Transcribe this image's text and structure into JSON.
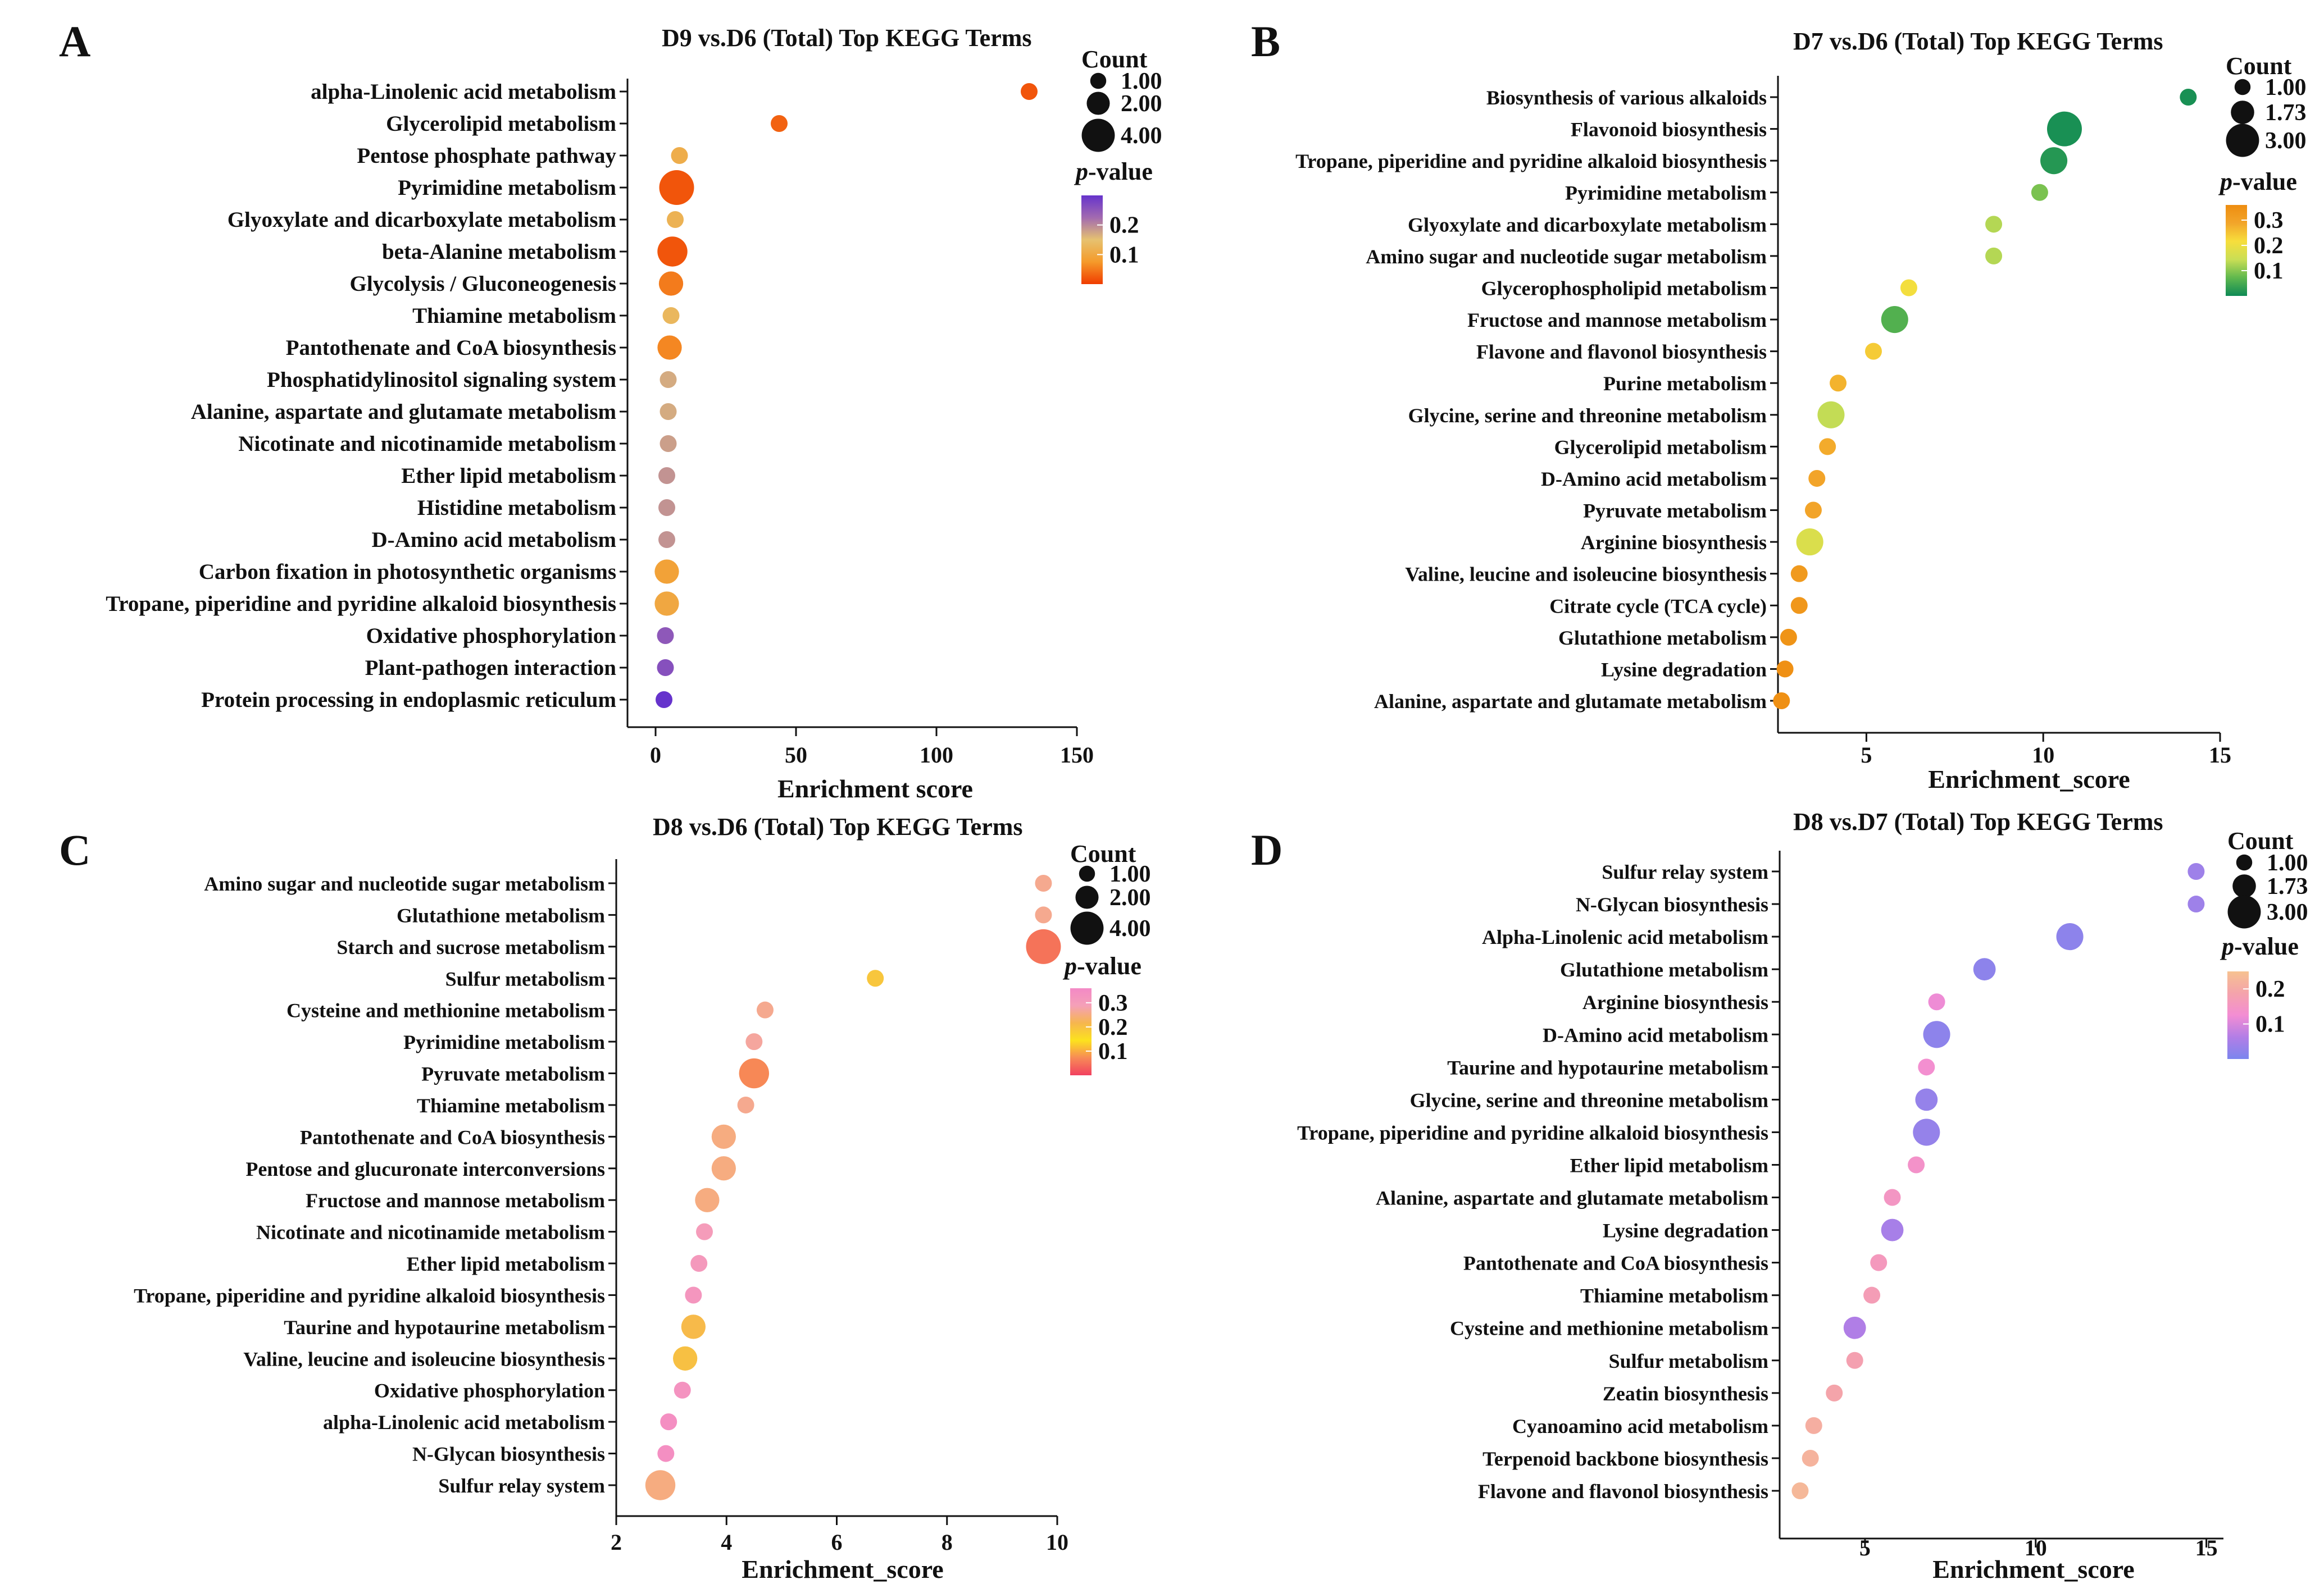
{
  "chart_data": [
    {
      "panel": "A",
      "type": "scatter",
      "title": "D9 vs.D6 (Total) Top KEGG Terms",
      "xlabel": "Enrichment  score",
      "ylabel": "",
      "xlim": [
        -10,
        150
      ],
      "xticks": [
        0,
        50,
        100,
        150
      ],
      "grid": false,
      "categories": [
        "alpha-Linolenic acid metabolism",
        "Glycerolipid metabolism",
        "Pentose phosphate pathway",
        "Pyrimidine metabolism",
        "Glyoxylate and dicarboxylate metabolism",
        "beta-Alanine metabolism",
        "Glycolysis / Gluconeogenesis",
        "Thiamine metabolism",
        "Pantothenate and CoA biosynthesis",
        "Phosphatidylinositol signaling system",
        "Alanine, aspartate and glutamate metabolism",
        "Nicotinate and nicotinamide metabolism",
        "Ether lipid metabolism",
        "Histidine metabolism",
        "D-Amino acid metabolism",
        "Carbon fixation in photosynthetic organisms",
        "Tropane, piperidine and pyridine alkaloid biosynthesis",
        "Oxidative phosphorylation",
        "Plant-pathogen interaction",
        "Protein processing in endoplasmic reticulum"
      ],
      "values": [
        133,
        44,
        8.5,
        7.5,
        7,
        6,
        5.5,
        5.5,
        5,
        4.5,
        4.5,
        4.5,
        4,
        4,
        4,
        4,
        4,
        3.5,
        3.5,
        3
      ],
      "counts": [
        1,
        1,
        1,
        4,
        1,
        3,
        2,
        1,
        2,
        1,
        1,
        1,
        1,
        1,
        1,
        2,
        2,
        1,
        1,
        1
      ],
      "pvalues": [
        0.02,
        0.03,
        0.11,
        0.02,
        0.12,
        0.02,
        0.05,
        0.13,
        0.06,
        0.17,
        0.17,
        0.18,
        0.19,
        0.19,
        0.19,
        0.09,
        0.1,
        0.25,
        0.26,
        0.3
      ],
      "legend": {
        "position": "top-right",
        "count_title": "Count",
        "count_entries": [
          {
            "label": "1.00",
            "value": 1
          },
          {
            "label": "2.00",
            "value": 2
          },
          {
            "label": "4.00",
            "value": 4
          }
        ],
        "count_max": 4,
        "p_title_italic": "p",
        "p_title_rest": "-value",
        "p_range": [
          0,
          0.3
        ],
        "p_ticks": [
          {
            "label": "0.2",
            "value": 0.2
          },
          {
            "label": "0.1",
            "value": 0.1
          }
        ],
        "colors": [
          "#f03c00",
          "#f59a2a",
          "#e6c270",
          "#a26ab0",
          "#6633cc"
        ]
      }
    },
    {
      "panel": "B",
      "type": "scatter",
      "title": "D7 vs.D6 (Total) Top KEGG Terms",
      "xlabel": "Enrichment_score",
      "ylabel": "",
      "xlim": [
        2.5,
        15
      ],
      "xticks": [
        5,
        10,
        15
      ],
      "grid": false,
      "categories": [
        "Biosynthesis of various alkaloids",
        "Flavonoid biosynthesis",
        "Tropane, piperidine and pyridine alkaloid biosynthesis",
        "Pyrimidine metabolism",
        "Glyoxylate and dicarboxylate metabolism",
        "Amino sugar and nucleotide sugar metabolism",
        "Glycerophospholipid metabolism",
        "Fructose and mannose metabolism",
        "Flavone and flavonol biosynthesis",
        "Purine metabolism",
        "Glycine, serine and threonine metabolism",
        "Glycerolipid metabolism",
        "D-Amino acid metabolism",
        "Pyruvate metabolism",
        "Arginine biosynthesis",
        "Valine, leucine and isoleucine biosynthesis",
        "Citrate cycle (TCA cycle)",
        "Glutathione metabolism",
        "Lysine degradation",
        "Alanine, aspartate and glutamate metabolism"
      ],
      "values": [
        14.1,
        10.6,
        10.3,
        9.9,
        8.6,
        8.6,
        6.2,
        5.8,
        5.2,
        4.2,
        4.0,
        3.9,
        3.6,
        3.5,
        3.4,
        3.1,
        3.1,
        2.8,
        2.7,
        2.6
      ],
      "counts": [
        1,
        3,
        2,
        1,
        1,
        1,
        1,
        2,
        1,
        1,
        2,
        1,
        1,
        1,
        2,
        1,
        1,
        1,
        1,
        1
      ],
      "pvalues": [
        0.01,
        0.01,
        0.02,
        0.09,
        0.13,
        0.13,
        0.21,
        0.06,
        0.24,
        0.27,
        0.14,
        0.28,
        0.29,
        0.29,
        0.17,
        0.32,
        0.33,
        0.34,
        0.35,
        0.35
      ],
      "legend": {
        "position": "top-right",
        "count_title": "Count",
        "count_entries": [
          {
            "label": "1.00",
            "value": 1
          },
          {
            "label": "1.73",
            "value": 1.73
          },
          {
            "label": "3.00",
            "value": 3
          }
        ],
        "count_max": 3,
        "p_title_italic": "p",
        "p_title_rest": "-value",
        "p_range": [
          0,
          0.36
        ],
        "p_ticks": [
          {
            "label": "0.3",
            "value": 0.3
          },
          {
            "label": "0.2",
            "value": 0.2
          },
          {
            "label": "0.1",
            "value": 0.1
          }
        ],
        "colors": [
          "#0e8a55",
          "#5fb84e",
          "#c9de55",
          "#f7de3c",
          "#f2a52a",
          "#ee8d10"
        ]
      }
    },
    {
      "panel": "C",
      "type": "scatter",
      "title": "D8 vs.D6 (Total) Top KEGG Terms",
      "xlabel": "Enrichment_score",
      "ylabel": "",
      "xlim": [
        2,
        10
      ],
      "xticks": [
        2,
        4,
        6,
        8,
        10
      ],
      "grid": false,
      "categories": [
        "Amino sugar and nucleotide sugar metabolism",
        "Glutathione metabolism",
        "Starch and sucrose metabolism",
        "Sulfur metabolism",
        "Cysteine and methionine metabolism",
        "Pyrimidine metabolism",
        "Pyruvate metabolism",
        "Thiamine metabolism",
        "Pantothenate and CoA biosynthesis",
        "Pentose and glucuronate interconversions",
        "Fructose and mannose metabolism",
        "Nicotinate and nicotinamide metabolism",
        "Ether lipid metabolism",
        "Tropane, piperidine and pyridine alkaloid biosynthesis",
        "Taurine and hypotaurine metabolism",
        "Valine, leucine and isoleucine biosynthesis",
        "Oxidative phosphorylation",
        "alpha-Linolenic acid metabolism",
        "N-Glycan biosynthesis",
        "Sulfur relay system"
      ],
      "values": [
        9.75,
        9.75,
        9.75,
        6.7,
        4.7,
        4.5,
        4.5,
        4.35,
        3.95,
        3.95,
        3.65,
        3.6,
        3.5,
        3.4,
        3.4,
        3.25,
        3.2,
        2.95,
        2.9,
        2.8
      ],
      "counts": [
        1,
        1,
        4,
        1,
        1,
        1,
        3,
        1,
        2,
        2,
        2,
        1,
        1,
        1,
        2,
        2,
        1,
        1,
        1,
        3
      ],
      "pvalues": [
        0.26,
        0.26,
        0.05,
        0.19,
        0.26,
        0.27,
        0.07,
        0.26,
        0.25,
        0.25,
        0.25,
        0.3,
        0.31,
        0.32,
        0.21,
        0.2,
        0.33,
        0.34,
        0.34,
        0.25
      ],
      "legend": {
        "position": "top-right",
        "count_title": "Count",
        "count_entries": [
          {
            "label": "1.00",
            "value": 1
          },
          {
            "label": "2.00",
            "value": 2
          },
          {
            "label": "4.00",
            "value": 4
          }
        ],
        "count_max": 4,
        "p_title_italic": "p",
        "p_title_rest": "-value",
        "p_range": [
          0,
          0.36
        ],
        "p_ticks": [
          {
            "label": "0.3",
            "value": 0.3
          },
          {
            "label": "0.2",
            "value": 0.2
          },
          {
            "label": "0.1",
            "value": 0.1
          }
        ],
        "colors": [
          "#f24060",
          "#f78a56",
          "#fce21e",
          "#f6b64e",
          "#f5a0b8",
          "#f389c6"
        ]
      }
    },
    {
      "panel": "D",
      "type": "scatter",
      "title": "D8 vs.D7 (Total) Top KEGG Terms",
      "xlabel": "Enrichment_score",
      "ylabel": "",
      "xlim": [
        2.5,
        15.5
      ],
      "xticks": [
        5,
        10,
        15
      ],
      "grid": false,
      "categories": [
        "Sulfur relay system",
        "N-Glycan biosynthesis",
        "Alpha-Linolenic acid metabolism",
        "Glutathione metabolism",
        "Arginine biosynthesis",
        "D-Amino acid metabolism",
        "Taurine and hypotaurine metabolism",
        "Glycine, serine and threonine metabolism",
        "Tropane, piperidine and pyridine alkaloid biosynthesis",
        "Ether lipid metabolism",
        "Alanine, aspartate and glutamate metabolism",
        "Lysine degradation",
        "Pantothenate and CoA biosynthesis",
        "Thiamine metabolism",
        "Cysteine and methionine metabolism",
        "Sulfur metabolism",
        "Zeatin biosynthesis",
        "Cyanoamino acid metabolism",
        "Terpenoid backbone biosynthesis",
        "Flavone and flavonol biosynthesis"
      ],
      "values": [
        14.7,
        14.7,
        11.0,
        8.5,
        7.1,
        7.1,
        6.8,
        6.8,
        6.8,
        6.5,
        5.8,
        5.8,
        5.4,
        5.2,
        4.7,
        4.7,
        4.1,
        3.5,
        3.4,
        3.1
      ],
      "counts": [
        1,
        1,
        2,
        1.5,
        1,
        2,
        1,
        1.5,
        2,
        1,
        1,
        1.5,
        1,
        1,
        1.5,
        1,
        1,
        1,
        1,
        1
      ],
      "pvalues": [
        0.04,
        0.04,
        0.02,
        0.02,
        0.12,
        0.02,
        0.13,
        0.03,
        0.03,
        0.14,
        0.15,
        0.05,
        0.16,
        0.17,
        0.06,
        0.18,
        0.19,
        0.21,
        0.22,
        0.23
      ],
      "legend": {
        "position": "top-right",
        "count_title": "Count",
        "count_entries": [
          {
            "label": "1.00",
            "value": 1
          },
          {
            "label": "1.73",
            "value": 1.73
          },
          {
            "label": "3.00",
            "value": 3
          }
        ],
        "count_max": 3,
        "p_title_italic": "p",
        "p_title_rest": "-value",
        "p_range": [
          0,
          0.25
        ],
        "p_ticks": [
          {
            "label": "0.2",
            "value": 0.2
          },
          {
            "label": "0.1",
            "value": 0.1
          }
        ],
        "colors": [
          "#7b85ee",
          "#b27ee6",
          "#f38dd3",
          "#f4a3ab",
          "#f6c290"
        ]
      }
    }
  ]
}
